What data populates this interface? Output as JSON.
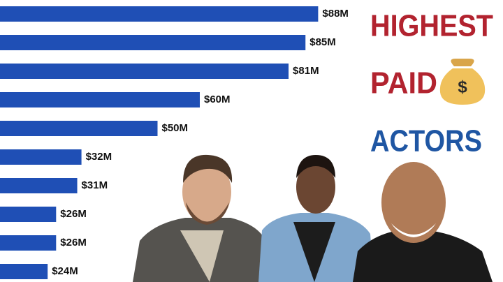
{
  "chart_data": {
    "type": "bar",
    "orientation": "horizontal",
    "title": [
      "HIGHEST",
      "PAID",
      "ACTORS"
    ],
    "values": [
      88,
      85,
      81,
      60,
      50,
      32,
      31,
      26,
      26,
      24
    ],
    "value_labels": [
      "$88M",
      "$85M",
      "$81M",
      "$60M",
      "$50M",
      "$32M",
      "$31M",
      "$26M",
      "$26M",
      "$24M"
    ],
    "color": "#1f4fb5"
  }
}
